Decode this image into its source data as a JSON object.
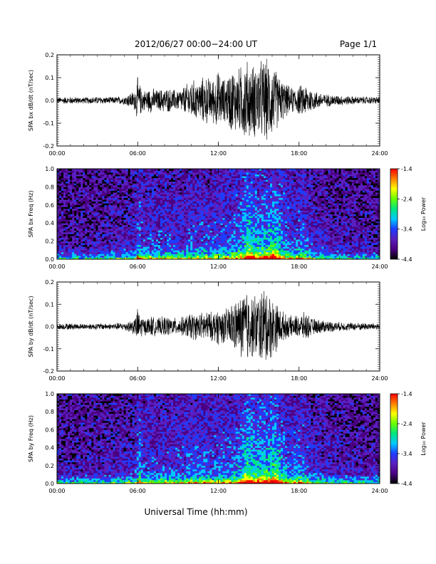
{
  "header": {
    "title": "2012/06/27  00:00−24:00 UT",
    "page": "Page 1/1"
  },
  "xlabel": "Universal Time (hh:mm)",
  "chart_data": [
    {
      "type": "line",
      "ylabel": "SPA bx dB/dt (nT/sec)",
      "xlim": [
        0,
        24
      ],
      "ylim": [
        -0.2,
        0.2
      ],
      "xticks": [
        "00:00",
        "06:00",
        "12:00",
        "18:00",
        "24:00"
      ],
      "yticks": [
        "-0.2",
        "-0.1",
        "0.0",
        "0.1",
        "0.2"
      ],
      "envelope": {
        "x": [
          0,
          1,
          2,
          3,
          4,
          5,
          5.8,
          6.0,
          6.2,
          6.5,
          7,
          7.5,
          8,
          9,
          9.5,
          10,
          10.5,
          11,
          11.5,
          12,
          12.5,
          13,
          13.5,
          14,
          14.5,
          15,
          15.5,
          16,
          16.5,
          17,
          17.5,
          18,
          18.5,
          19,
          20,
          21,
          22,
          23,
          24
        ],
        "amp": [
          0.015,
          0.018,
          0.015,
          0.018,
          0.016,
          0.02,
          0.05,
          0.11,
          0.07,
          0.05,
          0.06,
          0.05,
          0.06,
          0.05,
          0.07,
          0.1,
          0.09,
          0.12,
          0.1,
          0.14,
          0.1,
          0.16,
          0.15,
          0.2,
          0.17,
          0.19,
          0.2,
          0.18,
          0.12,
          0.08,
          0.06,
          0.07,
          0.08,
          0.05,
          0.03,
          0.025,
          0.02,
          0.018,
          0.018
        ]
      }
    },
    {
      "type": "heatmap",
      "ylabel": "SPA bx Freq (Hz)",
      "xlim": [
        0,
        24
      ],
      "ylim": [
        0.0,
        1.0
      ],
      "xticks": [
        "00:00",
        "06:00",
        "12:00",
        "18:00",
        "24:00"
      ],
      "yticks": [
        "0.0",
        "0.2",
        "0.4",
        "0.6",
        "0.8",
        "1.0"
      ],
      "colorbar": {
        "label": "Log₁₀ Power",
        "min": -4.4,
        "max": -1.4,
        "ticks": [
          "-1.4",
          "-2.4",
          "-3.4",
          "-4.4"
        ]
      },
      "colors": [
        "#000000",
        "#4b0082",
        "#5a1fc0",
        "#1e3cff",
        "#00c8ff",
        "#00e680",
        "#66ff00",
        "#ffff00",
        "#ff8000",
        "#ff0000"
      ],
      "activity": {
        "x": [
          0,
          3,
          5.8,
          6.1,
          6.4,
          7,
          8,
          9,
          10,
          11,
          12,
          13,
          13.8,
          14.2,
          14.8,
          15.5,
          16.2,
          16.8,
          17.5,
          18.2,
          19,
          20,
          22,
          24
        ],
        "level": [
          0.1,
          0.12,
          0.2,
          0.55,
          0.3,
          0.3,
          0.32,
          0.3,
          0.38,
          0.35,
          0.35,
          0.4,
          0.55,
          0.8,
          0.6,
          0.65,
          0.75,
          0.5,
          0.35,
          0.45,
          0.25,
          0.18,
          0.12,
          0.1
        ]
      }
    },
    {
      "type": "line",
      "ylabel": "SPA by dB/dt (nT/sec)",
      "xlim": [
        0,
        24
      ],
      "ylim": [
        -0.2,
        0.2
      ],
      "xticks": [
        "00:00",
        "06:00",
        "12:00",
        "18:00",
        "24:00"
      ],
      "yticks": [
        "-0.2",
        "-0.1",
        "0.0",
        "0.1",
        "0.2"
      ],
      "envelope": {
        "x": [
          0,
          1,
          2,
          3,
          4,
          5,
          5.8,
          6.0,
          6.2,
          6.5,
          7,
          7.5,
          8,
          9,
          9.5,
          10,
          10.5,
          11,
          11.5,
          12,
          12.5,
          13,
          13.5,
          14,
          14.5,
          15,
          15.5,
          16,
          16.5,
          17,
          17.5,
          18,
          18.5,
          19,
          20,
          21,
          22,
          23,
          24
        ],
        "amp": [
          0.015,
          0.016,
          0.014,
          0.016,
          0.015,
          0.02,
          0.04,
          0.09,
          0.06,
          0.04,
          0.05,
          0.04,
          0.05,
          0.04,
          0.05,
          0.07,
          0.06,
          0.08,
          0.07,
          0.09,
          0.08,
          0.12,
          0.13,
          0.2,
          0.15,
          0.17,
          0.2,
          0.15,
          0.1,
          0.06,
          0.05,
          0.06,
          0.07,
          0.04,
          0.03,
          0.022,
          0.02,
          0.018,
          0.018
        ]
      }
    },
    {
      "type": "heatmap",
      "ylabel": "SPA by Freq (Hz)",
      "xlim": [
        0,
        24
      ],
      "ylim": [
        0.0,
        1.0
      ],
      "xticks": [
        "00:00",
        "06:00",
        "12:00",
        "18:00",
        "24:00"
      ],
      "yticks": [
        "0.0",
        "0.2",
        "0.4",
        "0.6",
        "0.8",
        "1.0"
      ],
      "colorbar": {
        "label": "Log₁₀ Power",
        "min": -4.4,
        "max": -1.4,
        "ticks": [
          "-1.4",
          "-2.4",
          "-3.4",
          "-4.4"
        ]
      },
      "colors": [
        "#000000",
        "#4b0082",
        "#5a1fc0",
        "#1e3cff",
        "#00c8ff",
        "#00e680",
        "#66ff00",
        "#ffff00",
        "#ff8000",
        "#ff0000"
      ],
      "activity": {
        "x": [
          0,
          3,
          5.8,
          6.1,
          6.4,
          7,
          8,
          9,
          10,
          11,
          12,
          13,
          13.8,
          14.2,
          14.8,
          15.5,
          16.2,
          16.8,
          17.5,
          18.2,
          19,
          20,
          22,
          24
        ],
        "level": [
          0.12,
          0.15,
          0.22,
          0.55,
          0.32,
          0.32,
          0.34,
          0.32,
          0.4,
          0.38,
          0.38,
          0.42,
          0.6,
          0.85,
          0.65,
          0.7,
          0.8,
          0.52,
          0.38,
          0.48,
          0.28,
          0.2,
          0.14,
          0.12
        ]
      }
    }
  ]
}
